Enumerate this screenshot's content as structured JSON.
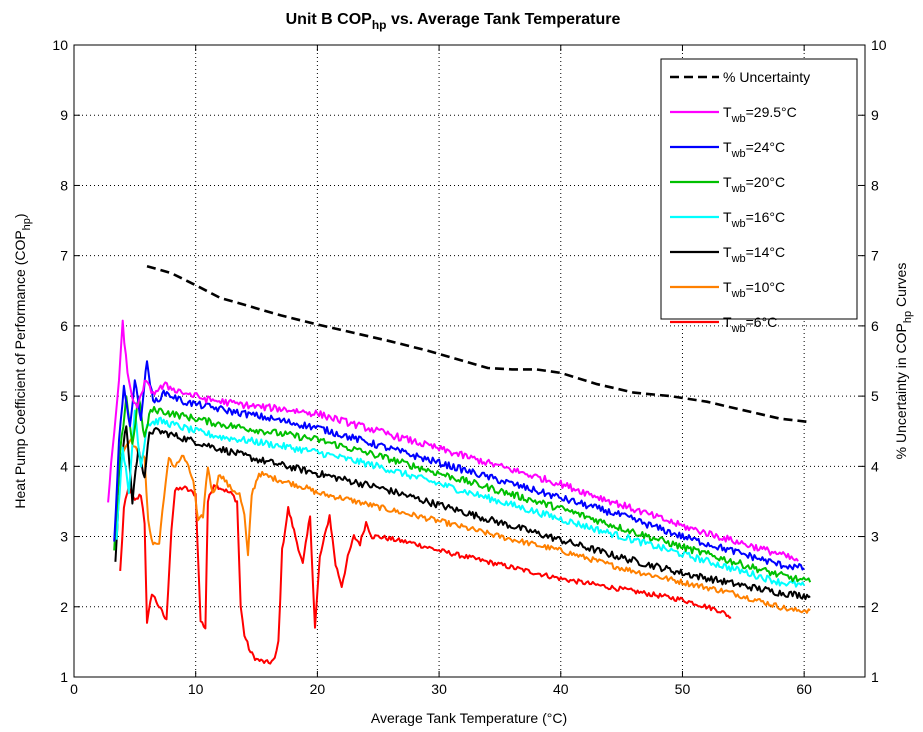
{
  "chart_data": {
    "type": "line",
    "title": {
      "main": "Unit B COP",
      "sub": "hp",
      "tail": " vs. Average Tank Temperature"
    },
    "xlabel": "Average Tank Temperature (°C)",
    "ylabel_left": {
      "main": "Heat Pump Coefficient of Performance (COP",
      "sub": "hp",
      "tail": ")"
    },
    "ylabel_right": {
      "main": "% Uncertainty in COP",
      "sub": "hp",
      "tail": " Curves"
    },
    "xlim": [
      0,
      65
    ],
    "ylim": [
      1,
      10
    ],
    "xticks": [
      "0",
      "10",
      "20",
      "30",
      "40",
      "50",
      "60"
    ],
    "yticks": [
      "1",
      "2",
      "3",
      "4",
      "5",
      "6",
      "7",
      "8",
      "9",
      "10"
    ],
    "grid": true,
    "legend_position": "top-right",
    "series": [
      {
        "label": "% Uncertainty",
        "color": "#000000",
        "dashed": true,
        "noise": 0,
        "x": [
          6,
          8,
          10,
          12,
          14,
          17,
          20,
          23,
          26,
          29,
          32,
          34,
          36,
          38,
          40,
          43,
          46,
          49,
          52,
          55,
          58,
          60.5
        ],
        "y": [
          6.85,
          6.75,
          6.58,
          6.4,
          6.3,
          6.15,
          6.02,
          5.9,
          5.78,
          5.65,
          5.5,
          5.4,
          5.38,
          5.38,
          5.33,
          5.17,
          5.05,
          5.0,
          4.92,
          4.8,
          4.68,
          4.63
        ]
      },
      {
        "label": "T",
        "sub": "wb",
        "value": "=29.5°C",
        "color": "#ff00ff",
        "noise": 0.05,
        "x": [
          2.8,
          3.3,
          3.7,
          4.0,
          4.4,
          4.8,
          5.2,
          5.8,
          6.5,
          7.5,
          9,
          11,
          13,
          15,
          17,
          20,
          25,
          30,
          35,
          40,
          45,
          50,
          55,
          58,
          59.5
        ],
        "y": [
          3.5,
          4.5,
          5.2,
          6.05,
          5.3,
          5.0,
          4.8,
          5.2,
          5.05,
          5.15,
          5.05,
          4.95,
          4.9,
          4.85,
          4.82,
          4.75,
          4.5,
          4.25,
          4.0,
          3.75,
          3.45,
          3.15,
          2.9,
          2.75,
          2.65
        ]
      },
      {
        "label": "T",
        "sub": "wb",
        "value": "=24°C",
        "color": "#0000ff",
        "noise": 0.05,
        "x": [
          3.3,
          3.7,
          4.1,
          4.6,
          5.0,
          5.5,
          6.0,
          6.5,
          7.5,
          9,
          11,
          13,
          15,
          17,
          20,
          25,
          30,
          35,
          40,
          45,
          50,
          55,
          58,
          60
        ],
        "y": [
          2.9,
          4.4,
          5.1,
          4.6,
          5.2,
          4.7,
          5.5,
          4.9,
          5.05,
          4.92,
          4.85,
          4.78,
          4.72,
          4.65,
          4.55,
          4.3,
          4.05,
          3.8,
          3.55,
          3.3,
          3.0,
          2.75,
          2.6,
          2.55
        ]
      },
      {
        "label": "T",
        "sub": "wb",
        "value": "=20°C",
        "color": "#00c000",
        "noise": 0.05,
        "x": [
          3.3,
          3.8,
          4.3,
          4.8,
          5.3,
          5.8,
          6.3,
          7.0,
          8,
          10,
          12,
          15,
          20,
          25,
          30,
          35,
          40,
          45,
          50,
          55,
          58,
          60.5
        ],
        "y": [
          2.8,
          4.2,
          5.0,
          4.3,
          5.0,
          4.4,
          4.8,
          4.8,
          4.75,
          4.68,
          4.6,
          4.52,
          4.38,
          4.15,
          3.9,
          3.65,
          3.4,
          3.12,
          2.85,
          2.6,
          2.45,
          2.35
        ]
      },
      {
        "label": "T",
        "sub": "wb",
        "value": "=16°C",
        "color": "#00ffff",
        "noise": 0.05,
        "x": [
          3.5,
          4.0,
          4.5,
          5.0,
          5.5,
          6.0,
          7.0,
          8,
          10,
          12,
          15,
          20,
          25,
          30,
          35,
          40,
          45,
          50,
          55,
          58,
          60
        ],
        "y": [
          3.0,
          4.3,
          3.6,
          4.8,
          4.0,
          4.6,
          4.65,
          4.6,
          4.5,
          4.42,
          4.35,
          4.2,
          4.0,
          3.75,
          3.5,
          3.25,
          3.0,
          2.75,
          2.5,
          2.35,
          2.3
        ]
      },
      {
        "label": "T",
        "sub": "wb",
        "value": "=14°C",
        "color": "#000000",
        "noise": 0.05,
        "x": [
          3.4,
          3.8,
          4.3,
          4.8,
          5.3,
          5.8,
          6.2,
          7.0,
          8,
          10,
          12,
          15,
          20,
          25,
          30,
          35,
          40,
          45,
          50,
          55,
          58,
          60.5
        ],
        "y": [
          2.6,
          4.0,
          4.6,
          3.5,
          4.3,
          3.8,
          4.5,
          4.5,
          4.45,
          4.35,
          4.25,
          4.1,
          3.9,
          3.7,
          3.45,
          3.2,
          2.95,
          2.7,
          2.48,
          2.3,
          2.2,
          2.15
        ]
      },
      {
        "label": "T",
        "sub": "wb",
        "value": "=10°C",
        "color": "#ff8000",
        "noise": 0.04,
        "x": [
          3.6,
          4.0,
          4.6,
          5.2,
          5.8,
          6.1,
          6.5,
          7.0,
          7.4,
          7.8,
          8.2,
          9,
          9.8,
          10.2,
          10.6,
          11,
          11.4,
          12,
          12.8,
          13.6,
          14.0,
          14.3,
          14.6,
          15.2,
          16,
          17,
          18,
          19,
          20,
          22,
          25,
          30,
          35,
          40,
          45,
          50,
          54,
          57,
          59,
          60.5
        ],
        "y": [
          3.8,
          4.2,
          4.4,
          4.2,
          4.1,
          3.2,
          2.9,
          2.9,
          3.6,
          4.1,
          4.0,
          4.15,
          3.8,
          3.2,
          3.3,
          4.0,
          3.6,
          3.9,
          3.7,
          3.6,
          3.3,
          2.7,
          3.6,
          3.9,
          3.85,
          3.8,
          3.75,
          3.7,
          3.62,
          3.55,
          3.42,
          3.22,
          3.0,
          2.8,
          2.55,
          2.35,
          2.2,
          2.05,
          1.95,
          1.95
        ]
      },
      {
        "label": "T",
        "sub": "wb",
        "value": "=6°C",
        "color": "#ff0000",
        "noise": 0.035,
        "x": [
          3.8,
          4.1,
          4.5,
          5.0,
          5.5,
          5.8,
          6.0,
          6.4,
          7.0,
          7.6,
          8.0,
          8.3,
          9,
          10,
          10.4,
          10.8,
          11.0,
          11.5,
          12,
          12.5,
          13,
          13.4,
          13.7,
          14.0,
          14.5,
          15,
          15.5,
          16,
          16.5,
          16.8,
          17.1,
          17.6,
          18.2,
          18.8,
          19.4,
          19.8,
          20.2,
          20.6,
          21,
          21.5,
          22,
          22.5,
          23,
          23.5,
          24,
          24.5,
          25,
          28,
          30,
          35,
          40,
          45,
          50,
          53,
          54
        ],
        "y": [
          2.5,
          3.4,
          3.7,
          3.5,
          3.6,
          3.2,
          1.75,
          2.2,
          2.0,
          1.8,
          3.1,
          3.65,
          3.7,
          3.6,
          1.8,
          1.7,
          3.5,
          3.75,
          3.7,
          3.65,
          3.6,
          3.5,
          2.0,
          1.6,
          1.35,
          1.25,
          1.22,
          1.2,
          1.25,
          1.5,
          2.8,
          3.4,
          3.0,
          2.6,
          3.3,
          1.7,
          2.7,
          3.0,
          3.3,
          2.6,
          2.3,
          2.7,
          3.0,
          2.9,
          3.2,
          3.0,
          3.0,
          2.9,
          2.8,
          2.6,
          2.4,
          2.25,
          2.1,
          1.95,
          1.85
        ]
      }
    ]
  }
}
